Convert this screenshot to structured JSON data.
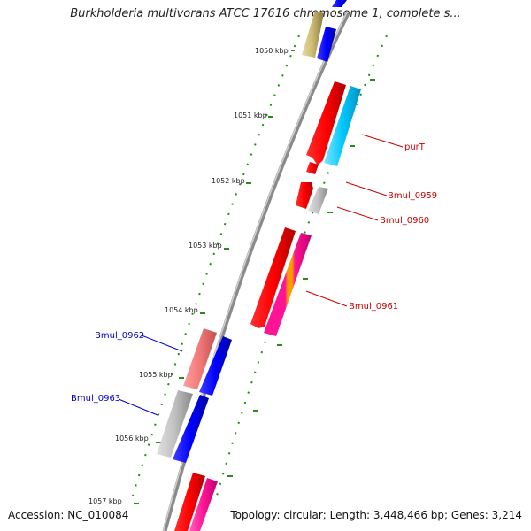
{
  "title": "Burkholderia multivorans ATCC 17616 chromosome 1, complete s...",
  "accession": "Accession: NC_010084",
  "stats": "Topology: circular; Length: 3,448,466 bp; Genes: 3,214",
  "colors": {
    "backbone": "#8a8a8a",
    "tick": "#2a8a1a",
    "label_red": "#cc0000",
    "label_blue": "#0000cc"
  },
  "kbp_ticks": [
    "1050 kbp",
    "1051 kbp",
    "1052 kbp",
    "1053 kbp",
    "1054 kbp",
    "1055 kbp",
    "1056 kbp",
    "1057 kbp"
  ],
  "gene_labels": [
    {
      "name": "purT",
      "color": "red"
    },
    {
      "name": "Bmul_0959",
      "color": "red"
    },
    {
      "name": "Bmul_0960",
      "color": "red"
    },
    {
      "name": "Bmul_0961",
      "color": "red"
    },
    {
      "name": "Bmul_0962",
      "color": "blue"
    },
    {
      "name": "Bmul_0963",
      "color": "blue"
    }
  ]
}
